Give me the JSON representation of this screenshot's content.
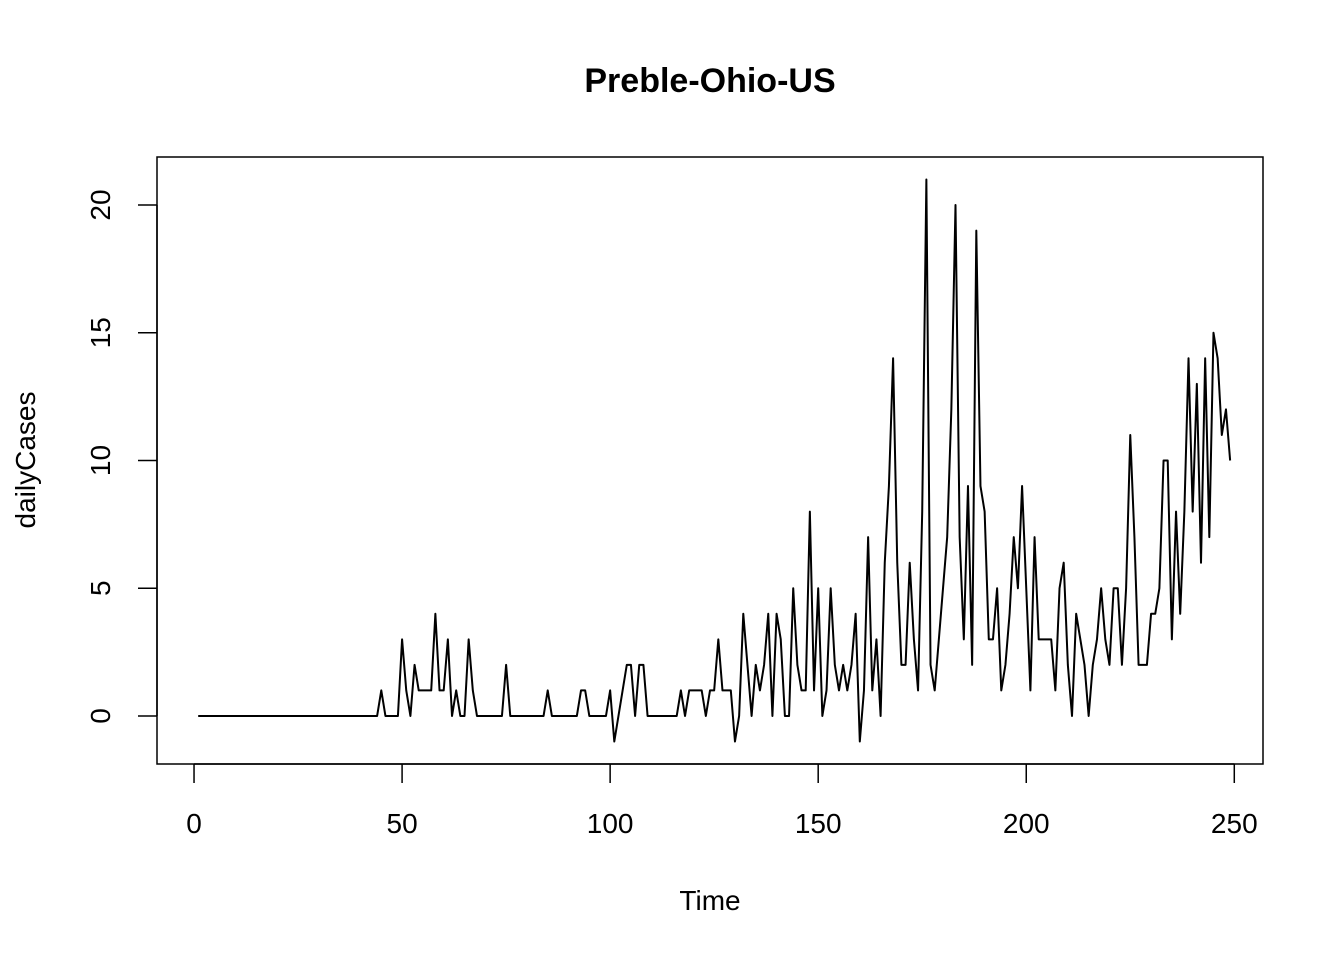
{
  "chart_data": {
    "type": "line",
    "title": "Preble-Ohio-US",
    "xlabel": "Time",
    "ylabel": "dailyCases",
    "xlim": [
      -8.9,
      256.9
    ],
    "ylim": [
      -1.88,
      21.88
    ],
    "xticks": [
      0,
      50,
      100,
      150,
      200,
      250
    ],
    "yticks": [
      0,
      5,
      10,
      15,
      20
    ],
    "grid": false,
    "legend": "none",
    "line_color": "#000000",
    "series": [
      {
        "x_start": 1,
        "values": [
          0,
          0,
          0,
          0,
          0,
          0,
          0,
          0,
          0,
          0,
          0,
          0,
          0,
          0,
          0,
          0,
          0,
          0,
          0,
          0,
          0,
          0,
          0,
          0,
          0,
          0,
          0,
          0,
          0,
          0,
          0,
          0,
          0,
          0,
          0,
          0,
          0,
          0,
          0,
          0,
          0,
          0,
          0,
          0,
          1,
          0,
          0,
          0,
          0,
          3,
          1,
          0,
          2,
          1,
          1,
          1,
          1,
          4,
          1,
          1,
          3,
          0,
          1,
          0,
          0,
          3,
          1,
          0,
          0,
          0,
          0,
          0,
          0,
          0,
          2,
          0,
          0,
          0,
          0,
          0,
          0,
          0,
          0,
          0,
          1,
          0,
          0,
          0,
          0,
          0,
          0,
          0,
          1,
          1,
          0,
          0,
          0,
          0,
          0,
          1,
          -1,
          0,
          1,
          2,
          2,
          0,
          2,
          2,
          0,
          0,
          0,
          0,
          0,
          0,
          0,
          0,
          1,
          0,
          1,
          1,
          1,
          1,
          0,
          1,
          1,
          3,
          1,
          1,
          1,
          -1,
          0,
          4,
          2,
          0,
          2,
          1,
          2,
          4,
          0,
          4,
          3,
          0,
          0,
          5,
          2,
          1,
          1,
          8,
          1,
          5,
          0,
          1,
          5,
          2,
          1,
          2,
          1,
          2,
          4,
          -1,
          1,
          7,
          1,
          3,
          0,
          6,
          9,
          14,
          6,
          2,
          2,
          6,
          3,
          1,
          8,
          21,
          2,
          1,
          3,
          5,
          7,
          12,
          20,
          7,
          3,
          9,
          2,
          19,
          9,
          8,
          3,
          3,
          5,
          1,
          2,
          4,
          7,
          5,
          9,
          5,
          1,
          7,
          3,
          3,
          3,
          3,
          1,
          5,
          6,
          2,
          0,
          4,
          3,
          2,
          0,
          2,
          3,
          5,
          3,
          2,
          5,
          5,
          2,
          5,
          11,
          7,
          2,
          2,
          2,
          4,
          4,
          5,
          10,
          10,
          3,
          8,
          4,
          8,
          14,
          8,
          13,
          6,
          14,
          7,
          15,
          14,
          11,
          12,
          10
        ]
      }
    ]
  }
}
